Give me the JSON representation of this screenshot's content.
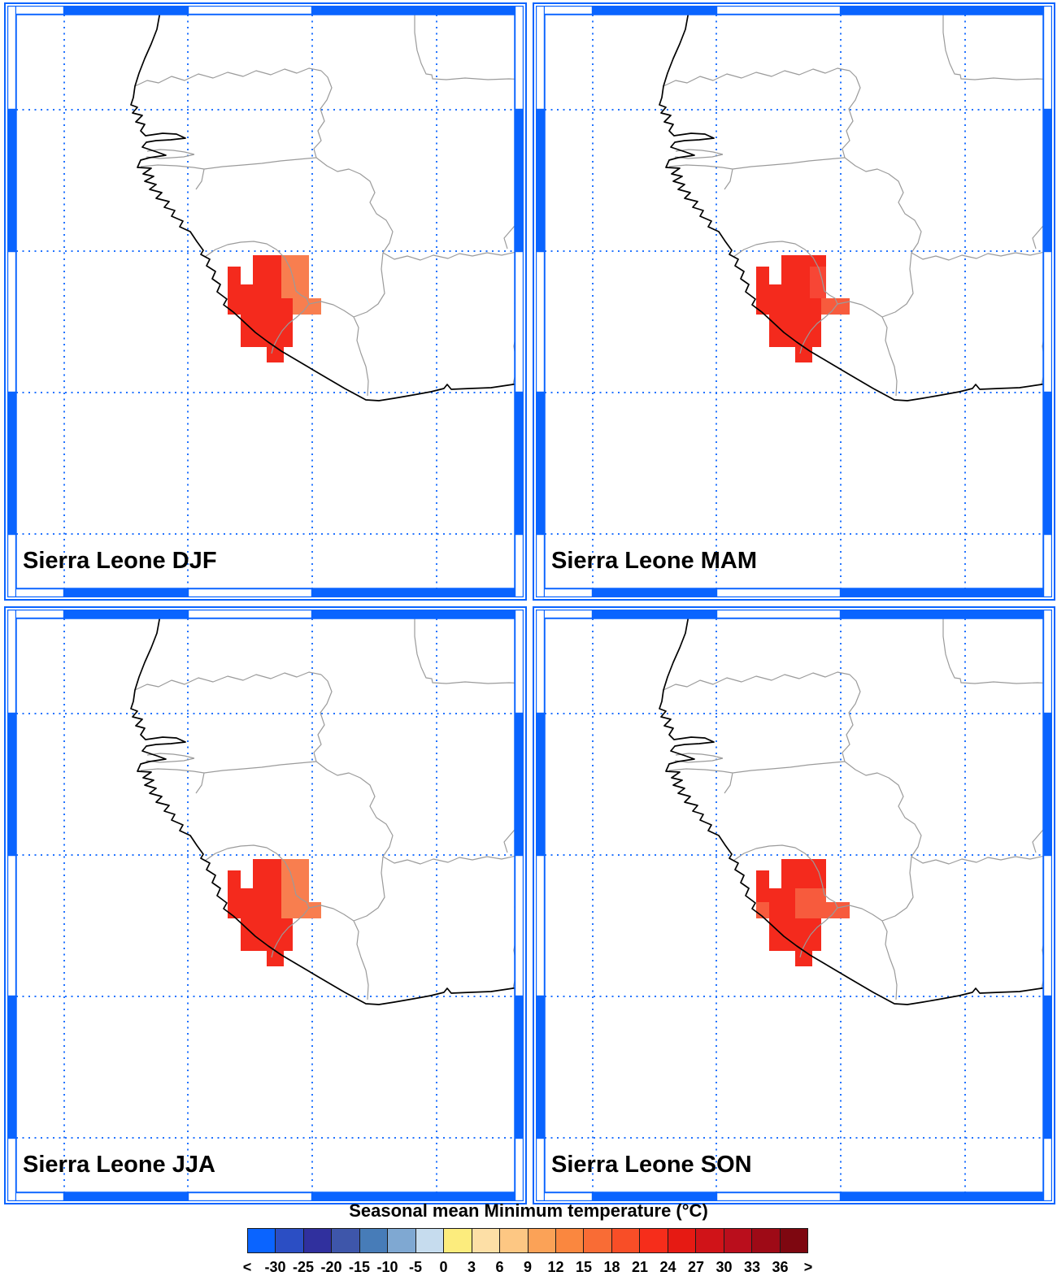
{
  "figure": {
    "palette": {
      "r": "#F42A1D",
      "o": "#F87E4F",
      "p": "#F75B3D",
      "q": "#F74635"
    },
    "map_colors": {
      "frame_blue": "#0A64FF",
      "grid_blue": "#2273FF",
      "coast_black": "#000000",
      "border_gray": "#9B9B9B",
      "background": "#FFFFFF"
    },
    "panels": [
      {
        "id": "djf",
        "label": "Sierra Leone DJF",
        "cells": [
          [
            307,
            312,
            35,
            36,
            "r"
          ],
          [
            276,
            326,
            16,
            22,
            "r"
          ],
          [
            276,
            348,
            66,
            37,
            "r"
          ],
          [
            342,
            365,
            14,
            20,
            "r"
          ],
          [
            292,
            385,
            64,
            40,
            "r"
          ],
          [
            324,
            425,
            21,
            19,
            "r"
          ],
          [
            342,
            312,
            34,
            53,
            "o"
          ],
          [
            356,
            365,
            35,
            20,
            "o"
          ]
        ]
      },
      {
        "id": "mam",
        "label": "Sierra Leone MAM",
        "cells": [
          [
            307,
            312,
            55,
            14,
            "r"
          ],
          [
            276,
            326,
            16,
            22,
            "r"
          ],
          [
            307,
            326,
            35,
            22,
            "r"
          ],
          [
            342,
            326,
            20,
            39,
            "q"
          ],
          [
            276,
            348,
            66,
            37,
            "r"
          ],
          [
            342,
            365,
            14,
            20,
            "r"
          ],
          [
            292,
            385,
            64,
            40,
            "r"
          ],
          [
            324,
            425,
            21,
            19,
            "r"
          ],
          [
            356,
            365,
            35,
            20,
            "p"
          ]
        ]
      },
      {
        "id": "jja",
        "label": "Sierra Leone JJA",
        "cells": [
          [
            307,
            312,
            35,
            36,
            "r"
          ],
          [
            276,
            326,
            16,
            22,
            "r"
          ],
          [
            276,
            348,
            66,
            37,
            "r"
          ],
          [
            292,
            385,
            64,
            40,
            "r"
          ],
          [
            324,
            425,
            21,
            19,
            "r"
          ],
          [
            342,
            312,
            34,
            53,
            "o"
          ],
          [
            342,
            365,
            14,
            20,
            "o"
          ],
          [
            356,
            365,
            35,
            20,
            "o"
          ]
        ]
      },
      {
        "id": "son",
        "label": "Sierra Leone SON",
        "cells": [
          [
            307,
            312,
            55,
            14,
            "r"
          ],
          [
            276,
            326,
            16,
            22,
            "r"
          ],
          [
            307,
            326,
            35,
            22,
            "r"
          ],
          [
            342,
            326,
            20,
            22,
            "r"
          ],
          [
            276,
            348,
            48,
            17,
            "r"
          ],
          [
            276,
            365,
            16,
            20,
            "p"
          ],
          [
            292,
            365,
            32,
            20,
            "r"
          ],
          [
            324,
            348,
            38,
            37,
            "p"
          ],
          [
            292,
            385,
            64,
            40,
            "r"
          ],
          [
            324,
            425,
            21,
            19,
            "r"
          ],
          [
            356,
            365,
            35,
            20,
            "p"
          ]
        ]
      }
    ],
    "colorbar": {
      "title": "Seasonal mean Minimum temperature (°C)",
      "ticks": [
        "<",
        "-30",
        "-25",
        "-20",
        "-15",
        "-10",
        "-5",
        "0",
        "3",
        "6",
        "9",
        "12",
        "15",
        "18",
        "21",
        "24",
        "27",
        "30",
        "33",
        "36",
        ">"
      ],
      "colors": [
        "#0A64FF",
        "#2B4EC4",
        "#30309E",
        "#3E56AA",
        "#477CB8",
        "#7FA8D2",
        "#C6DCEE",
        "#FCEC7D",
        "#FDDFA6",
        "#FDC783",
        "#FBA257",
        "#FA873F",
        "#F96C35",
        "#F84E27",
        "#F62D1B",
        "#E61A13",
        "#D01318",
        "#BA0E1C",
        "#9E0A16",
        "#7E0710"
      ]
    }
  },
  "chart_data": {
    "type": "heatmap",
    "title": "Seasonal mean Minimum temperature (°C)",
    "seasons": [
      "DJF",
      "MAM",
      "JJA",
      "SON"
    ],
    "region": "Sierra Leone",
    "legend_position": "bottom",
    "scale_breakpoints": [
      -30,
      -25,
      -20,
      -15,
      -10,
      -5,
      0,
      3,
      6,
      9,
      12,
      15,
      18,
      21,
      24,
      27,
      30,
      33,
      36
    ],
    "scale_colors": [
      "#0A64FF",
      "#2B4EC4",
      "#30309E",
      "#3E56AA",
      "#477CB8",
      "#7FA8D2",
      "#C6DCEE",
      "#FCEC7D",
      "#FDDFA6",
      "#FDC783",
      "#FBA257",
      "#FA873F",
      "#F96C35",
      "#F84E27",
      "#F62D1B",
      "#E61A13",
      "#D01318",
      "#BA0E1C",
      "#9E0A16",
      "#7E0710"
    ]
  }
}
